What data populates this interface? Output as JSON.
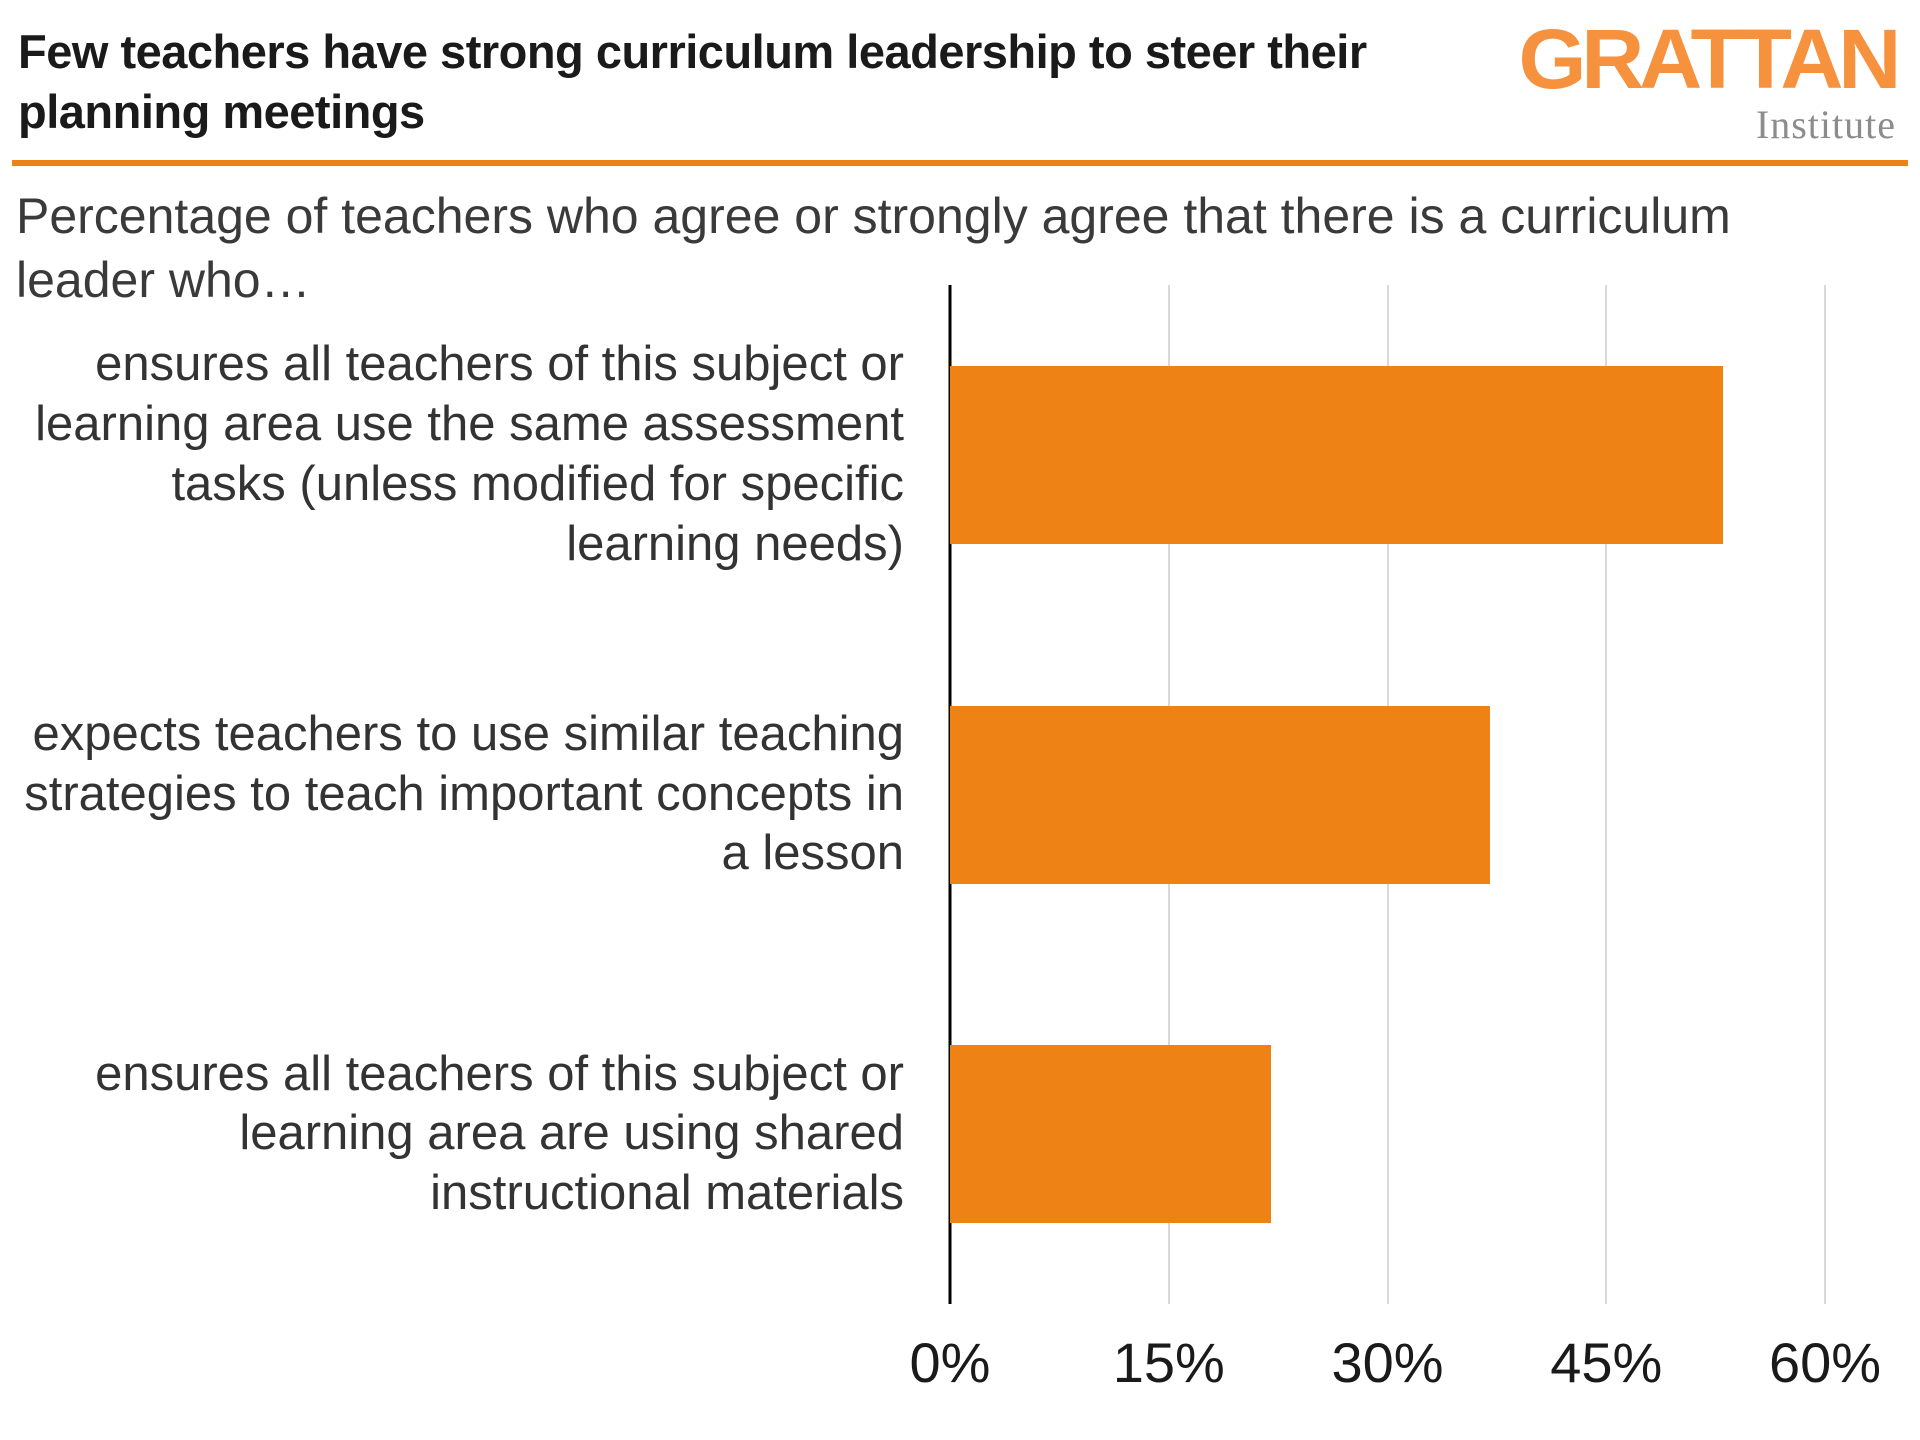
{
  "header": {
    "title": "Few teachers have strong curriculum leadership to steer their planning meetings",
    "logo": {
      "main": "GRATTAN",
      "sub": "Institute"
    }
  },
  "subtitle": "Percentage of teachers who agree or strongly agree that there is a curriculum leader who…",
  "colors": {
    "accent": "#ef8214",
    "logo_orange": "#f6913d",
    "grid": "#d9d9d9",
    "axis": "#000000"
  },
  "chart_data": {
    "type": "bar",
    "orientation": "horizontal",
    "title": "Few teachers have strong curriculum leadership to steer their planning meetings",
    "subtitle": "Percentage of teachers who agree or strongly agree that there is a curriculum leader who…",
    "categories": [
      "ensures all teachers of this subject or learning area use the same assessment tasks (unless modified for specific learning needs)",
      "expects teachers to use similar teaching strategies to teach important concepts in a lesson",
      "ensures all teachers of this subject or learning area are using shared instructional materials"
    ],
    "values": [
      53,
      37,
      22
    ],
    "unit": "%",
    "xlim": [
      0,
      60
    ],
    "xticks": [
      0,
      15,
      30,
      45,
      60
    ],
    "xtick_labels": [
      "0%",
      "15%",
      "30%",
      "45%",
      "60%"
    ],
    "bar_color": "#ef8214",
    "grid": true,
    "legend": false
  }
}
